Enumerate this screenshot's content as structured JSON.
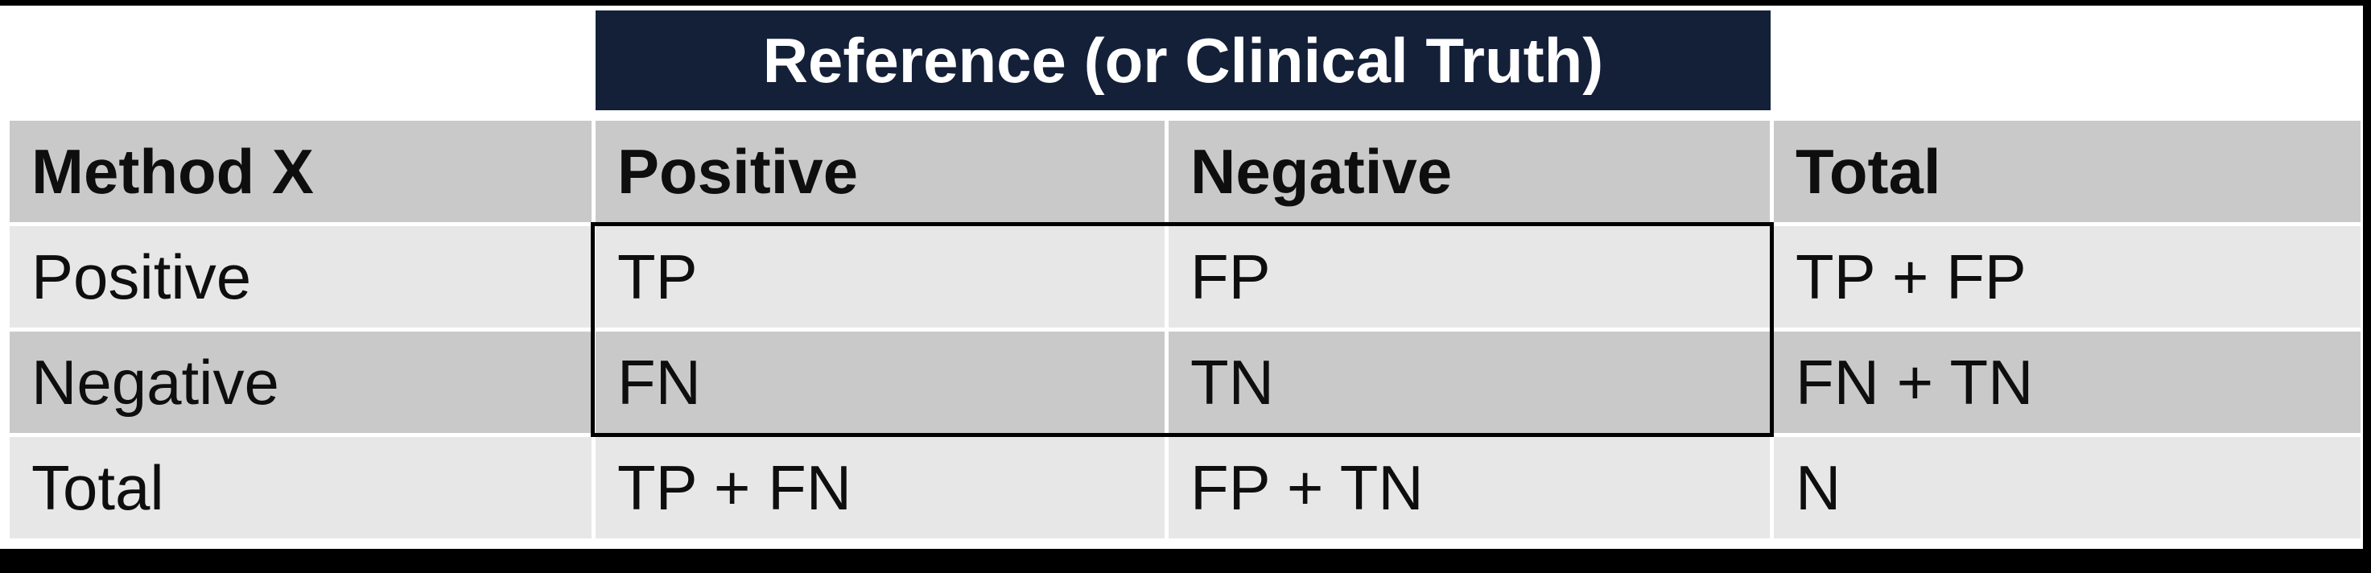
{
  "colors": {
    "navy": "#142038",
    "banner_text": "#ffffff",
    "row_light": "#e7e7e7",
    "row_dark": "#c9c9c9",
    "border_black": "#000000"
  },
  "banner": {
    "title": "Reference (or Clinical Truth)"
  },
  "table": {
    "columns": [
      "Method X",
      "Positive",
      "Negative",
      "Total"
    ],
    "rows": [
      {
        "label": "Positive",
        "cells": [
          "TP",
          "FP",
          "TP + FP"
        ]
      },
      {
        "label": "Negative",
        "cells": [
          "FN",
          "TN",
          "FN + TN"
        ]
      },
      {
        "label": "Total",
        "cells": [
          "TP + FN",
          "FP + TN",
          "N"
        ]
      }
    ]
  }
}
